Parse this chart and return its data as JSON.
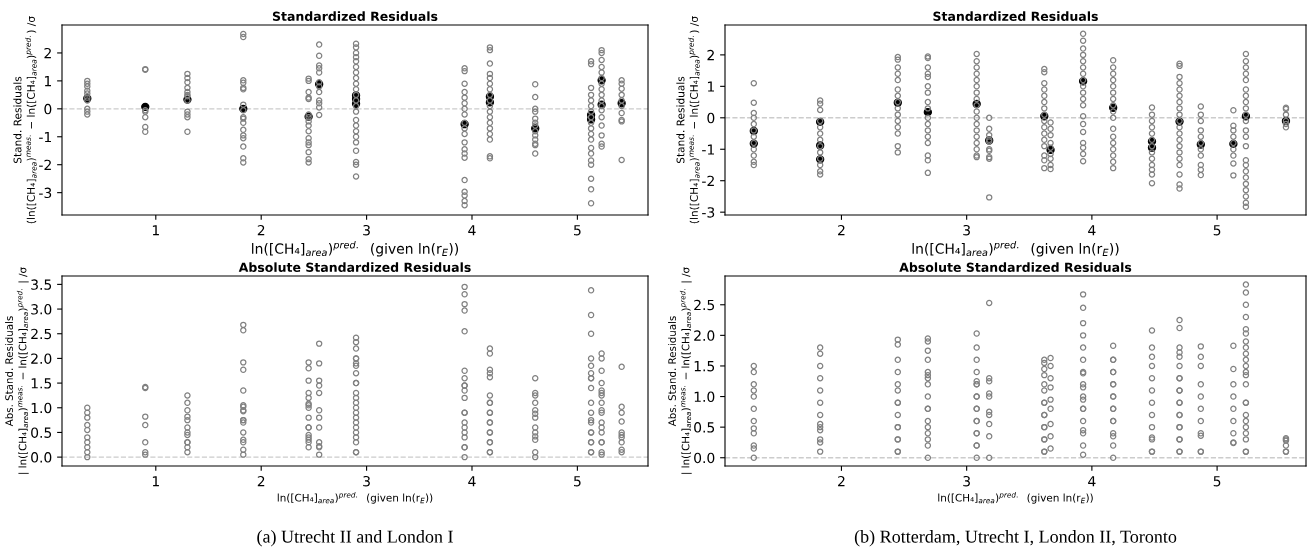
{
  "chart_data": [
    {
      "type": "scatter",
      "title": "Standardized Residuals",
      "xlabel": "ln([CH₄]$_{area}$)$^{pred.}$  (given ln(r$_{E}$))",
      "ylabel": "Stand. Residuals\n(ln([CH₄]$_{area}$)$^{meas.}$ − ln([CH₄]$_{area}$)$^{pred.}$) /σ",
      "marker": "circle",
      "xlim": [
        0.11,
        5.67
      ],
      "xticks": [
        1,
        2,
        3,
        4,
        5
      ],
      "ylim": [
        -3.8,
        3.0
      ],
      "yticks": [
        -3,
        -2,
        -1,
        0,
        1,
        2
      ],
      "ref_lines": [
        {
          "axis": "y",
          "value": 0,
          "color": "#cccccc",
          "line_style": "dashed"
        }
      ],
      "series": [
        {
          "color": "#808080",
          "x": [
            0.35,
            0.35,
            0.35,
            0.35,
            0.35,
            0.35,
            0.35,
            0.35,
            0.35,
            0.35,
            0.9,
            0.9,
            0.9,
            0.9,
            0.9,
            0.9,
            0.9,
            1.3,
            1.3,
            1.3,
            1.3,
            1.3,
            1.3,
            1.3,
            1.3,
            1.3,
            1.3,
            1.3,
            1.3,
            1.83,
            1.83,
            1.83,
            1.83,
            1.83,
            1.83,
            1.83,
            1.83,
            1.83,
            1.83,
            1.83,
            1.83,
            1.83,
            1.83,
            1.83,
            1.83,
            1.83,
            2.45,
            2.45,
            2.45,
            2.45,
            2.45,
            2.45,
            2.45,
            2.45,
            2.45,
            2.45,
            2.45,
            2.45,
            2.45,
            2.45,
            2.45,
            2.45,
            2.55,
            2.55,
            2.55,
            2.55,
            2.55,
            2.55,
            2.55,
            2.55,
            2.55,
            2.55,
            2.55,
            2.55,
            2.9,
            2.9,
            2.9,
            2.9,
            2.9,
            2.9,
            2.9,
            2.9,
            2.9,
            2.9,
            2.9,
            2.9,
            2.9,
            2.9,
            2.9,
            2.9,
            2.9,
            2.9,
            2.9,
            2.9,
            2.9,
            2.9,
            2.9,
            3.93,
            3.93,
            3.93,
            3.93,
            3.93,
            3.93,
            3.93,
            3.93,
            3.93,
            3.93,
            3.93,
            3.93,
            3.93,
            3.93,
            3.93,
            3.93,
            3.93,
            3.93,
            3.93,
            3.93,
            4.17,
            4.17,
            4.17,
            4.17,
            4.17,
            4.17,
            4.17,
            4.17,
            4.17,
            4.17,
            4.17,
            4.17,
            4.17,
            4.17,
            4.17,
            4.17,
            4.17,
            4.17,
            4.6,
            4.6,
            4.6,
            4.6,
            4.6,
            4.6,
            4.6,
            4.6,
            4.6,
            4.6,
            4.6,
            4.6,
            4.6,
            5.13,
            5.13,
            5.13,
            5.13,
            5.13,
            5.13,
            5.13,
            5.13,
            5.13,
            5.13,
            5.13,
            5.13,
            5.13,
            5.13,
            5.13,
            5.13,
            5.13,
            5.13,
            5.13,
            5.23,
            5.23,
            5.23,
            5.23,
            5.23,
            5.23,
            5.23,
            5.23,
            5.23,
            5.23,
            5.23,
            5.23,
            5.23,
            5.23,
            5.23,
            5.23,
            5.23,
            5.42,
            5.42,
            5.42,
            5.42,
            5.42,
            5.42,
            5.42,
            5.42,
            5.42,
            5.42
          ],
          "values": [
            1.0,
            0.9,
            0.8,
            0.65,
            0.55,
            0.4,
            0.3,
            0.0,
            -0.1,
            -0.2,
            1.42,
            1.4,
            -0.05,
            -0.1,
            -0.3,
            -0.65,
            -0.82,
            1.25,
            1.1,
            0.95,
            0.75,
            0.6,
            0.5,
            0.45,
            0.3,
            -0.1,
            -0.2,
            -0.3,
            -0.82,
            2.68,
            2.57,
            1.02,
            0.93,
            0.75,
            0.7,
            0.15,
            -0.05,
            -0.3,
            -0.35,
            -0.5,
            -0.75,
            -0.95,
            -1.05,
            -1.35,
            -1.77,
            -1.92,
            1.08,
            1.0,
            0.6,
            0.4,
            0.35,
            -0.2,
            -0.3,
            -0.45,
            -0.6,
            -0.8,
            -1.05,
            -1.2,
            -1.3,
            -1.55,
            -1.8,
            -1.92,
            2.3,
            1.9,
            1.55,
            1.45,
            1.3,
            0.95,
            0.8,
            0.6,
            0.3,
            0.2,
            0.05,
            -0.22,
            2.33,
            2.2,
            2.0,
            1.85,
            1.7,
            1.5,
            1.3,
            1.1,
            0.9,
            0.7,
            0.5,
            0.3,
            0.1,
            -0.1,
            -0.4,
            -0.6,
            -0.8,
            -1.0,
            -1.2,
            -1.5,
            -1.9,
            -2.0,
            -2.42,
            1.45,
            1.35,
            0.9,
            0.6,
            0.4,
            0.2,
            0.0,
            -0.2,
            -0.5,
            -0.7,
            -0.9,
            -1.2,
            -1.45,
            -1.6,
            -1.75,
            -2.55,
            -2.97,
            -3.1,
            -3.3,
            -3.45,
            2.2,
            2.1,
            1.62,
            1.25,
            1.1,
            0.9,
            0.7,
            0.5,
            0.3,
            0.1,
            -0.1,
            -0.3,
            -0.5,
            -0.7,
            -0.9,
            -1.1,
            -1.7,
            -1.77,
            0.88,
            0.42,
            0.0,
            -0.1,
            -0.35,
            -0.5,
            -0.6,
            -0.8,
            -0.95,
            -1.1,
            -1.25,
            -1.3,
            -1.6,
            1.7,
            1.6,
            0.75,
            0.5,
            0.3,
            0.1,
            -0.1,
            -0.3,
            -0.5,
            -0.7,
            -0.9,
            -1.1,
            -1.4,
            -1.6,
            -1.85,
            -2.0,
            -2.5,
            -2.88,
            -3.38,
            2.1,
            2.0,
            1.75,
            1.5,
            1.3,
            1.1,
            0.9,
            0.7,
            0.5,
            0.3,
            0.1,
            -0.05,
            -0.3,
            -0.6,
            -0.95,
            -1.25,
            -1.35,
            1.02,
            0.9,
            0.72,
            0.5,
            0.3,
            0.1,
            -0.15,
            -0.4,
            -0.45,
            -1.83
          ]
        },
        {
          "color": "#000000",
          "x": [
            0.35,
            0.9,
            1.3,
            1.83,
            2.45,
            2.55,
            2.9,
            2.9,
            2.9,
            3.93,
            4.17,
            4.17,
            4.6,
            5.13,
            5.13,
            5.23,
            5.23,
            5.42
          ],
          "values": [
            0.37,
            0.07,
            0.33,
            0.0,
            -0.28,
            0.88,
            0.48,
            0.35,
            0.18,
            -0.55,
            0.43,
            0.23,
            -0.7,
            -0.22,
            -0.38,
            1.02,
            0.15,
            0.2
          ]
        }
      ]
    },
    {
      "type": "scatter",
      "title": "Absolute Standardized Residuals",
      "xlabel": "ln([CH₄]$_{area}$)$^{pred.}$  (given ln(r$_{E}$))",
      "ylabel": "Abs. Stand. Residuals\n| ln([CH₄]$_{area}$)$^{meas.}$ − ln([CH₄]$_{area}$)$^{pred.}$ | /σ",
      "marker": "circle",
      "xlim": [
        0.11,
        5.67
      ],
      "xticks": [
        1,
        2,
        3,
        4,
        5
      ],
      "ylim": [
        -0.18,
        3.67
      ],
      "yticks": [
        {
          "value": 0,
          "label": "0.0"
        },
        0.5,
        {
          "value": 1,
          "label": "1.0"
        },
        1.5,
        {
          "value": 2,
          "label": "2.0"
        },
        2.5,
        {
          "value": 3,
          "label": "3.0"
        },
        3.5
      ],
      "ref_lines": [
        {
          "axis": "y",
          "value": 0,
          "color": "#cccccc",
          "line_style": "dashed"
        }
      ],
      "annotations": [
        "(a) Utrecht II and London I"
      ],
      "series": [
        {
          "color": "#808080",
          "x": [
            0.35,
            0.35,
            0.35,
            0.35,
            0.35,
            0.35,
            0.35,
            0.35,
            0.35,
            0.35,
            0.9,
            0.9,
            0.9,
            0.9,
            0.9,
            0.9,
            0.9,
            1.3,
            1.3,
            1.3,
            1.3,
            1.3,
            1.3,
            1.3,
            1.3,
            1.3,
            1.3,
            1.3,
            1.3,
            1.83,
            1.83,
            1.83,
            1.83,
            1.83,
            1.83,
            1.83,
            1.83,
            1.83,
            1.83,
            1.83,
            1.83,
            1.83,
            1.83,
            1.83,
            1.83,
            1.83,
            2.45,
            2.45,
            2.45,
            2.45,
            2.45,
            2.45,
            2.45,
            2.45,
            2.45,
            2.45,
            2.45,
            2.45,
            2.45,
            2.45,
            2.45,
            2.45,
            2.55,
            2.55,
            2.55,
            2.55,
            2.55,
            2.55,
            2.55,
            2.55,
            2.55,
            2.55,
            2.55,
            2.55,
            2.9,
            2.9,
            2.9,
            2.9,
            2.9,
            2.9,
            2.9,
            2.9,
            2.9,
            2.9,
            2.9,
            2.9,
            2.9,
            2.9,
            2.9,
            2.9,
            2.9,
            2.9,
            2.9,
            2.9,
            2.9,
            2.9,
            2.9,
            3.93,
            3.93,
            3.93,
            3.93,
            3.93,
            3.93,
            3.93,
            3.93,
            3.93,
            3.93,
            3.93,
            3.93,
            3.93,
            3.93,
            3.93,
            3.93,
            3.93,
            3.93,
            3.93,
            3.93,
            4.17,
            4.17,
            4.17,
            4.17,
            4.17,
            4.17,
            4.17,
            4.17,
            4.17,
            4.17,
            4.17,
            4.17,
            4.17,
            4.17,
            4.17,
            4.17,
            4.17,
            4.17,
            4.6,
            4.6,
            4.6,
            4.6,
            4.6,
            4.6,
            4.6,
            4.6,
            4.6,
            4.6,
            4.6,
            4.6,
            4.6,
            5.13,
            5.13,
            5.13,
            5.13,
            5.13,
            5.13,
            5.13,
            5.13,
            5.13,
            5.13,
            5.13,
            5.13,
            5.13,
            5.13,
            5.13,
            5.13,
            5.13,
            5.13,
            5.13,
            5.23,
            5.23,
            5.23,
            5.23,
            5.23,
            5.23,
            5.23,
            5.23,
            5.23,
            5.23,
            5.23,
            5.23,
            5.23,
            5.23,
            5.23,
            5.23,
            5.23,
            5.42,
            5.42,
            5.42,
            5.42,
            5.42,
            5.42,
            5.42,
            5.42,
            5.42,
            5.42
          ],
          "values": [
            1.0,
            0.9,
            0.8,
            0.65,
            0.55,
            0.4,
            0.3,
            0.0,
            0.1,
            0.2,
            1.42,
            1.4,
            0.05,
            0.1,
            0.3,
            0.65,
            0.82,
            1.25,
            1.1,
            0.95,
            0.75,
            0.6,
            0.5,
            0.45,
            0.3,
            0.1,
            0.2,
            0.3,
            0.82,
            2.68,
            2.57,
            1.02,
            0.93,
            0.75,
            0.7,
            0.15,
            0.05,
            0.3,
            0.35,
            0.5,
            0.75,
            0.95,
            1.05,
            1.35,
            1.77,
            1.92,
            1.08,
            1.0,
            0.6,
            0.4,
            0.35,
            0.2,
            0.3,
            0.45,
            0.6,
            0.8,
            1.05,
            1.2,
            1.3,
            1.55,
            1.8,
            1.92,
            2.3,
            1.9,
            1.55,
            1.45,
            1.3,
            0.95,
            0.8,
            0.6,
            0.3,
            0.2,
            0.05,
            0.22,
            2.33,
            2.2,
            2.0,
            1.85,
            1.7,
            1.5,
            1.3,
            1.1,
            0.9,
            0.7,
            0.5,
            0.3,
            0.1,
            0.1,
            0.4,
            0.6,
            0.8,
            1.0,
            1.2,
            1.5,
            1.9,
            2.0,
            2.42,
            1.45,
            1.35,
            0.9,
            0.6,
            0.4,
            0.2,
            0.0,
            0.2,
            0.5,
            0.7,
            0.9,
            1.2,
            1.45,
            1.6,
            1.75,
            2.55,
            2.97,
            3.1,
            3.3,
            3.45,
            2.2,
            2.1,
            1.62,
            1.25,
            1.1,
            0.9,
            0.7,
            0.5,
            0.3,
            0.1,
            0.1,
            0.3,
            0.5,
            0.7,
            0.9,
            1.1,
            1.7,
            1.77,
            0.88,
            0.42,
            0.0,
            0.1,
            0.35,
            0.5,
            0.6,
            0.8,
            0.95,
            1.1,
            1.25,
            1.3,
            1.6,
            1.7,
            1.6,
            0.75,
            0.5,
            0.3,
            0.1,
            0.1,
            0.3,
            0.5,
            0.7,
            0.9,
            1.1,
            1.4,
            1.6,
            1.85,
            2.0,
            2.5,
            2.88,
            3.38,
            2.1,
            2.0,
            1.75,
            1.5,
            1.3,
            1.1,
            0.9,
            0.7,
            0.5,
            0.3,
            0.1,
            0.05,
            0.3,
            0.6,
            0.95,
            1.25,
            1.35,
            1.02,
            0.9,
            0.72,
            0.5,
            0.3,
            0.1,
            0.15,
            0.4,
            0.45,
            1.83
          ]
        }
      ]
    },
    {
      "type": "scatter",
      "title": "Standardized Residuals",
      "xlabel": "ln([CH₄]$_{area}$)$^{pred.}$  (given ln(r$_{E}$))",
      "ylabel": "Stand. Residuals\n(ln([CH₄]$_{area}$)$^{meas.}$ − ln([CH₄]$_{area}$)$^{pred.}$) /σ",
      "marker": "circle",
      "xlim": [
        1.07,
        5.71
      ],
      "xticks": [
        2,
        3,
        4,
        5
      ],
      "ylim": [
        -3.09,
        2.95
      ],
      "yticks": [
        -3,
        -2,
        -1,
        0,
        1,
        2
      ],
      "ref_lines": [
        {
          "axis": "y",
          "value": 0,
          "color": "#cccccc",
          "line_style": "dashed"
        }
      ],
      "series": [
        {
          "color": "#808080",
          "x": [
            1.3,
            1.3,
            1.3,
            1.3,
            1.3,
            1.3,
            1.3,
            1.3,
            1.3,
            1.3,
            1.3,
            1.3,
            1.83,
            1.83,
            1.83,
            1.83,
            1.83,
            1.83,
            1.83,
            1.83,
            1.83,
            1.83,
            1.83,
            1.83,
            1.83,
            2.45,
            2.45,
            2.45,
            2.45,
            2.45,
            2.45,
            2.45,
            2.45,
            2.45,
            2.45,
            2.45,
            2.45,
            2.45,
            2.45,
            2.45,
            2.69,
            2.69,
            2.69,
            2.69,
            2.69,
            2.69,
            2.69,
            2.69,
            2.69,
            2.69,
            2.69,
            2.69,
            2.69,
            2.69,
            2.69,
            2.69,
            2.69,
            3.08,
            3.08,
            3.08,
            3.08,
            3.08,
            3.08,
            3.08,
            3.08,
            3.08,
            3.08,
            3.08,
            3.08,
            3.08,
            3.08,
            3.08,
            3.08,
            3.08,
            3.08,
            3.18,
            3.18,
            3.18,
            3.18,
            3.18,
            3.18,
            3.18,
            3.18,
            3.18,
            3.18,
            3.62,
            3.62,
            3.62,
            3.62,
            3.62,
            3.62,
            3.62,
            3.62,
            3.62,
            3.62,
            3.62,
            3.62,
            3.62,
            3.62,
            3.62,
            3.62,
            3.67,
            3.67,
            3.67,
            3.67,
            3.67,
            3.67,
            3.67,
            3.67,
            3.67,
            3.93,
            3.93,
            3.93,
            3.93,
            3.93,
            3.93,
            3.93,
            3.93,
            3.93,
            3.93,
            3.93,
            3.93,
            3.93,
            3.93,
            3.93,
            3.93,
            3.93,
            3.93,
            3.93,
            4.17,
            4.17,
            4.17,
            4.17,
            4.17,
            4.17,
            4.17,
            4.17,
            4.17,
            4.17,
            4.17,
            4.17,
            4.17,
            4.17,
            4.17,
            4.17,
            4.17,
            4.48,
            4.48,
            4.48,
            4.48,
            4.48,
            4.48,
            4.48,
            4.48,
            4.48,
            4.48,
            4.48,
            4.48,
            4.48,
            4.7,
            4.7,
            4.7,
            4.7,
            4.7,
            4.7,
            4.7,
            4.7,
            4.7,
            4.7,
            4.7,
            4.7,
            4.7,
            4.7,
            4.7,
            4.7,
            4.7,
            4.7,
            4.7,
            4.7,
            4.87,
            4.87,
            4.87,
            4.87,
            4.87,
            4.87,
            4.87,
            4.87,
            4.87,
            4.87,
            4.87,
            5.13,
            5.13,
            5.13,
            5.13,
            5.13,
            5.13,
            5.13,
            5.13,
            5.13,
            5.23,
            5.23,
            5.23,
            5.23,
            5.23,
            5.23,
            5.23,
            5.23,
            5.23,
            5.23,
            5.23,
            5.23,
            5.23,
            5.23,
            5.23,
            5.23,
            5.23,
            5.23,
            5.23,
            5.23,
            5.23,
            5.23,
            5.23,
            5.55,
            5.55,
            5.55,
            5.55,
            5.55,
            5.55
          ],
          "values": [
            1.1,
            0.48,
            0.15,
            0.0,
            -0.2,
            -0.4,
            -0.6,
            -0.8,
            -1.0,
            -1.2,
            -1.4,
            -1.5,
            0.55,
            0.45,
            0.25,
            -0.1,
            -0.3,
            -0.5,
            -0.7,
            -0.9,
            -1.1,
            -1.3,
            -1.5,
            -1.7,
            -1.8,
            1.93,
            1.85,
            1.6,
            1.4,
            1.2,
            0.9,
            0.7,
            0.5,
            0.3,
            0.1,
            -0.1,
            -0.3,
            -0.5,
            -0.9,
            -1.1,
            1.95,
            1.9,
            1.6,
            1.4,
            1.3,
            1.0,
            0.8,
            0.5,
            0.3,
            0.0,
            -0.2,
            -0.4,
            -0.6,
            -0.8,
            -1.2,
            -1.35,
            -1.75,
            2.03,
            1.8,
            1.6,
            1.4,
            1.2,
            1.0,
            0.8,
            0.6,
            0.4,
            0.2,
            0.0,
            -0.2,
            -0.4,
            -0.6,
            -0.8,
            -1.0,
            -1.2,
            -1.25,
            0.0,
            -0.35,
            -0.55,
            -0.7,
            -0.75,
            -1.0,
            -1.05,
            -1.25,
            -1.3,
            -2.53,
            1.55,
            1.45,
            1.1,
            0.9,
            0.7,
            0.5,
            0.3,
            0.1,
            -0.1,
            -0.3,
            -0.5,
            -0.7,
            -0.9,
            -1.2,
            -1.35,
            -1.6,
            -0.15,
            -0.35,
            -0.55,
            -0.8,
            -0.95,
            -1.15,
            -1.3,
            -1.5,
            -1.63,
            2.67,
            2.45,
            2.2,
            2.0,
            1.8,
            1.6,
            1.4,
            1.2,
            1.0,
            0.8,
            0.6,
            0.4,
            0.05,
            -0.2,
            -0.45,
            -0.8,
            -0.95,
            -1.15,
            -1.38,
            1.83,
            1.6,
            1.4,
            1.2,
            1.0,
            0.8,
            0.6,
            0.4,
            0.2,
            0.0,
            -0.35,
            -0.6,
            -0.8,
            -1.0,
            -1.2,
            -1.4,
            -1.6,
            0.33,
            0.1,
            -0.1,
            -0.3,
            -0.5,
            -0.7,
            -0.9,
            -1.1,
            -1.3,
            -1.5,
            -1.65,
            -1.8,
            -2.08,
            1.72,
            1.65,
            1.3,
            1.1,
            0.9,
            0.7,
            0.5,
            0.3,
            0.1,
            -0.1,
            -0.3,
            -0.5,
            -0.7,
            -0.9,
            -1.1,
            -1.3,
            -1.5,
            -1.8,
            -2.12,
            -2.25,
            0.36,
            0.1,
            -0.1,
            -0.4,
            -0.6,
            -0.8,
            -1.0,
            -1.2,
            -1.5,
            -1.65,
            -1.82,
            0.24,
            -0.25,
            -0.4,
            -0.6,
            -0.8,
            -1.0,
            -1.2,
            -1.45,
            -1.83,
            2.03,
            1.8,
            1.6,
            1.4,
            1.2,
            0.9,
            0.7,
            0.5,
            0.3,
            0.1,
            -0.1,
            -0.4,
            -0.6,
            -0.9,
            -1.35,
            -1.5,
            -1.7,
            -1.9,
            -2.1,
            -2.3,
            -2.5,
            -2.7,
            -2.83,
            0.32,
            0.28,
            0.1,
            -0.1,
            -0.2,
            -0.3
          ]
        },
        {
          "color": "#000000",
          "x": [
            1.3,
            1.3,
            1.83,
            1.83,
            1.83,
            2.45,
            2.69,
            3.08,
            3.18,
            3.62,
            3.67,
            3.93,
            4.17,
            4.48,
            4.48,
            4.7,
            4.87,
            5.13,
            5.23,
            5.55
          ],
          "values": [
            -0.42,
            -0.82,
            -0.13,
            -0.88,
            -1.32,
            0.48,
            0.18,
            0.44,
            -0.72,
            0.05,
            -1.02,
            1.16,
            0.32,
            -0.75,
            -0.95,
            -0.12,
            -0.85,
            -0.83,
            0.05,
            -0.1
          ]
        }
      ]
    },
    {
      "type": "scatter",
      "title": "Absolute Standardized Residuals",
      "xlabel": "ln([CH₄]$_{area}$)$^{pred.}$  (given ln(r$_{E}$))",
      "ylabel": "Abs. Stand. Residuals\n| ln([CH₄]$_{area}$)$^{meas.}$ − ln([CH₄]$_{area}$)$^{pred.}$ | /σ",
      "marker": "circle",
      "xlim": [
        1.07,
        5.71
      ],
      "xticks": [
        2,
        3,
        4,
        5
      ],
      "ylim": [
        -0.135,
        2.97
      ],
      "yticks": [
        {
          "value": 0,
          "label": "0.0"
        },
        0.5,
        {
          "value": 1,
          "label": "1.0"
        },
        1.5,
        {
          "value": 2,
          "label": "2.0"
        },
        2.5
      ],
      "ref_lines": [
        {
          "axis": "y",
          "value": 0,
          "color": "#cccccc",
          "line_style": "dashed"
        }
      ],
      "annotations": [
        "(b) Rotterdam, Utrecht I, London II, Toronto"
      ],
      "series": [
        {
          "color": "#808080",
          "x": [
            1.3,
            1.3,
            1.3,
            1.3,
            1.3,
            1.3,
            1.3,
            1.3,
            1.3,
            1.3,
            1.3,
            1.3,
            1.83,
            1.83,
            1.83,
            1.83,
            1.83,
            1.83,
            1.83,
            1.83,
            1.83,
            1.83,
            1.83,
            1.83,
            1.83,
            2.45,
            2.45,
            2.45,
            2.45,
            2.45,
            2.45,
            2.45,
            2.45,
            2.45,
            2.45,
            2.45,
            2.45,
            2.45,
            2.45,
            2.45,
            2.69,
            2.69,
            2.69,
            2.69,
            2.69,
            2.69,
            2.69,
            2.69,
            2.69,
            2.69,
            2.69,
            2.69,
            2.69,
            2.69,
            2.69,
            2.69,
            2.69,
            3.08,
            3.08,
            3.08,
            3.08,
            3.08,
            3.08,
            3.08,
            3.08,
            3.08,
            3.08,
            3.08,
            3.08,
            3.08,
            3.08,
            3.08,
            3.08,
            3.08,
            3.08,
            3.18,
            3.18,
            3.18,
            3.18,
            3.18,
            3.18,
            3.18,
            3.18,
            3.18,
            3.18,
            3.62,
            3.62,
            3.62,
            3.62,
            3.62,
            3.62,
            3.62,
            3.62,
            3.62,
            3.62,
            3.62,
            3.62,
            3.62,
            3.62,
            3.62,
            3.62,
            3.67,
            3.67,
            3.67,
            3.67,
            3.67,
            3.67,
            3.67,
            3.67,
            3.67,
            3.93,
            3.93,
            3.93,
            3.93,
            3.93,
            3.93,
            3.93,
            3.93,
            3.93,
            3.93,
            3.93,
            3.93,
            3.93,
            3.93,
            3.93,
            3.93,
            3.93,
            3.93,
            3.93,
            4.17,
            4.17,
            4.17,
            4.17,
            4.17,
            4.17,
            4.17,
            4.17,
            4.17,
            4.17,
            4.17,
            4.17,
            4.17,
            4.17,
            4.17,
            4.17,
            4.17,
            4.48,
            4.48,
            4.48,
            4.48,
            4.48,
            4.48,
            4.48,
            4.48,
            4.48,
            4.48,
            4.48,
            4.48,
            4.48,
            4.7,
            4.7,
            4.7,
            4.7,
            4.7,
            4.7,
            4.7,
            4.7,
            4.7,
            4.7,
            4.7,
            4.7,
            4.7,
            4.7,
            4.7,
            4.7,
            4.7,
            4.7,
            4.7,
            4.7,
            4.87,
            4.87,
            4.87,
            4.87,
            4.87,
            4.87,
            4.87,
            4.87,
            4.87,
            4.87,
            4.87,
            5.13,
            5.13,
            5.13,
            5.13,
            5.13,
            5.13,
            5.13,
            5.13,
            5.13,
            5.23,
            5.23,
            5.23,
            5.23,
            5.23,
            5.23,
            5.23,
            5.23,
            5.23,
            5.23,
            5.23,
            5.23,
            5.23,
            5.23,
            5.23,
            5.23,
            5.23,
            5.23,
            5.23,
            5.23,
            5.23,
            5.23,
            5.23,
            5.55,
            5.55,
            5.55,
            5.55,
            5.55,
            5.55
          ],
          "values": [
            1.1,
            0.48,
            0.15,
            0.0,
            0.2,
            0.4,
            0.6,
            0.8,
            1.0,
            1.2,
            1.4,
            1.5,
            0.55,
            0.45,
            0.25,
            0.1,
            0.3,
            0.5,
            0.7,
            0.9,
            1.1,
            1.3,
            1.5,
            1.7,
            1.8,
            1.93,
            1.85,
            1.6,
            1.4,
            1.2,
            0.9,
            0.7,
            0.5,
            0.3,
            0.1,
            0.1,
            0.3,
            0.5,
            0.9,
            1.1,
            1.95,
            1.9,
            1.6,
            1.4,
            1.3,
            1.0,
            0.8,
            0.5,
            0.3,
            0.0,
            0.2,
            0.4,
            0.6,
            0.8,
            1.2,
            1.35,
            1.75,
            2.03,
            1.8,
            1.6,
            1.4,
            1.2,
            1.0,
            0.8,
            0.6,
            0.4,
            0.2,
            0.0,
            0.2,
            0.4,
            0.6,
            0.8,
            1.0,
            1.2,
            1.25,
            0.0,
            0.35,
            0.55,
            0.7,
            0.75,
            1.0,
            1.05,
            1.25,
            1.3,
            2.53,
            1.55,
            1.45,
            1.1,
            0.9,
            0.7,
            0.5,
            0.3,
            0.1,
            0.1,
            0.3,
            0.5,
            0.7,
            0.9,
            1.2,
            1.35,
            1.6,
            0.15,
            0.35,
            0.55,
            0.8,
            0.95,
            1.15,
            1.3,
            1.5,
            1.63,
            2.67,
            2.45,
            2.2,
            2.0,
            1.8,
            1.6,
            1.4,
            1.2,
            1.0,
            0.8,
            0.6,
            0.4,
            0.05,
            0.2,
            0.45,
            0.8,
            0.95,
            1.15,
            1.38,
            1.83,
            1.6,
            1.4,
            1.2,
            1.0,
            0.8,
            0.6,
            0.4,
            0.2,
            0.0,
            0.35,
            0.6,
            0.8,
            1.0,
            1.2,
            1.4,
            1.6,
            0.33,
            0.1,
            0.1,
            0.3,
            0.5,
            0.7,
            0.9,
            1.1,
            1.3,
            1.5,
            1.65,
            1.8,
            2.08,
            1.72,
            1.65,
            1.3,
            1.1,
            0.9,
            0.7,
            0.5,
            0.3,
            0.1,
            0.1,
            0.3,
            0.5,
            0.7,
            0.9,
            1.1,
            1.3,
            1.5,
            1.8,
            2.12,
            2.25,
            0.36,
            0.1,
            0.1,
            0.4,
            0.6,
            0.8,
            1.0,
            1.2,
            1.5,
            1.65,
            1.82,
            0.24,
            0.25,
            0.4,
            0.6,
            0.8,
            1.0,
            1.2,
            1.45,
            1.83,
            2.03,
            1.8,
            1.6,
            1.4,
            1.2,
            0.9,
            0.7,
            0.5,
            0.3,
            0.1,
            0.1,
            0.4,
            0.6,
            0.9,
            1.35,
            1.5,
            1.7,
            1.9,
            2.1,
            2.3,
            2.5,
            2.7,
            2.83,
            0.32,
            0.28,
            0.1,
            0.1,
            0.2,
            0.3
          ]
        }
      ]
    }
  ]
}
